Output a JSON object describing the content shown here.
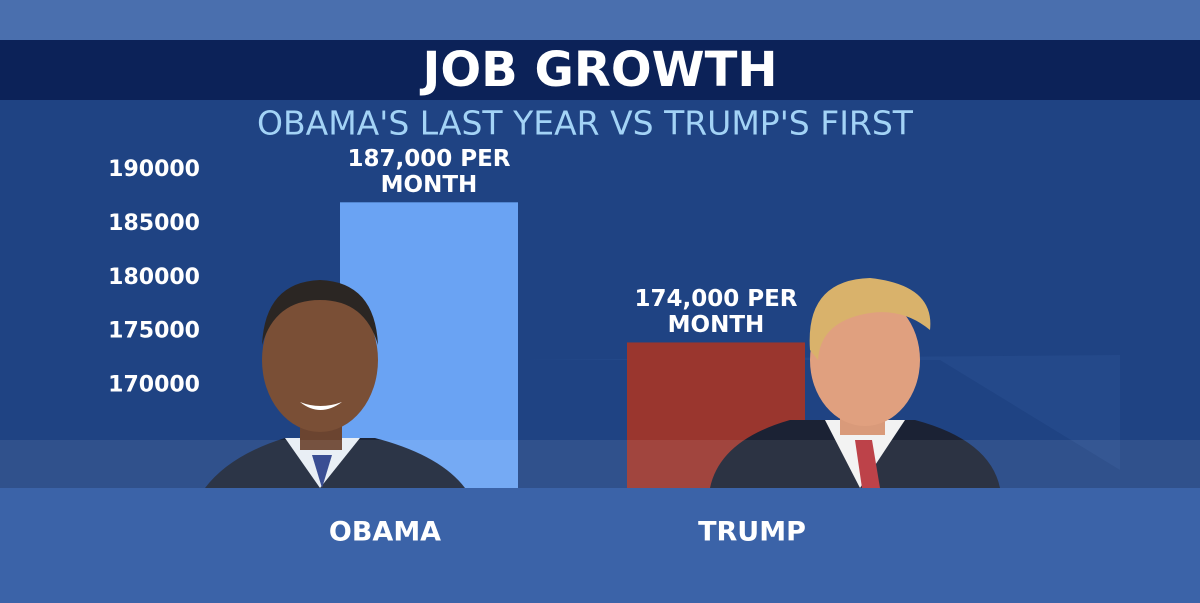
{
  "chart_data": {
    "type": "bar",
    "title": "JOB GROWTH",
    "subtitle": "OBAMA'S LAST YEAR VS TRUMP'S FIRST",
    "categories": [
      "OBAMA",
      "TRUMP"
    ],
    "values": [
      187000,
      174000
    ],
    "value_labels": [
      "187,000 PER MONTH",
      "174,000 PER MONTH"
    ],
    "colors": [
      "#6aa3f3",
      "#9a362e"
    ],
    "ylim": [
      160500,
      192000
    ],
    "yticks": [
      190000,
      185000,
      180000,
      175000,
      170000
    ],
    "grid": false
  }
}
